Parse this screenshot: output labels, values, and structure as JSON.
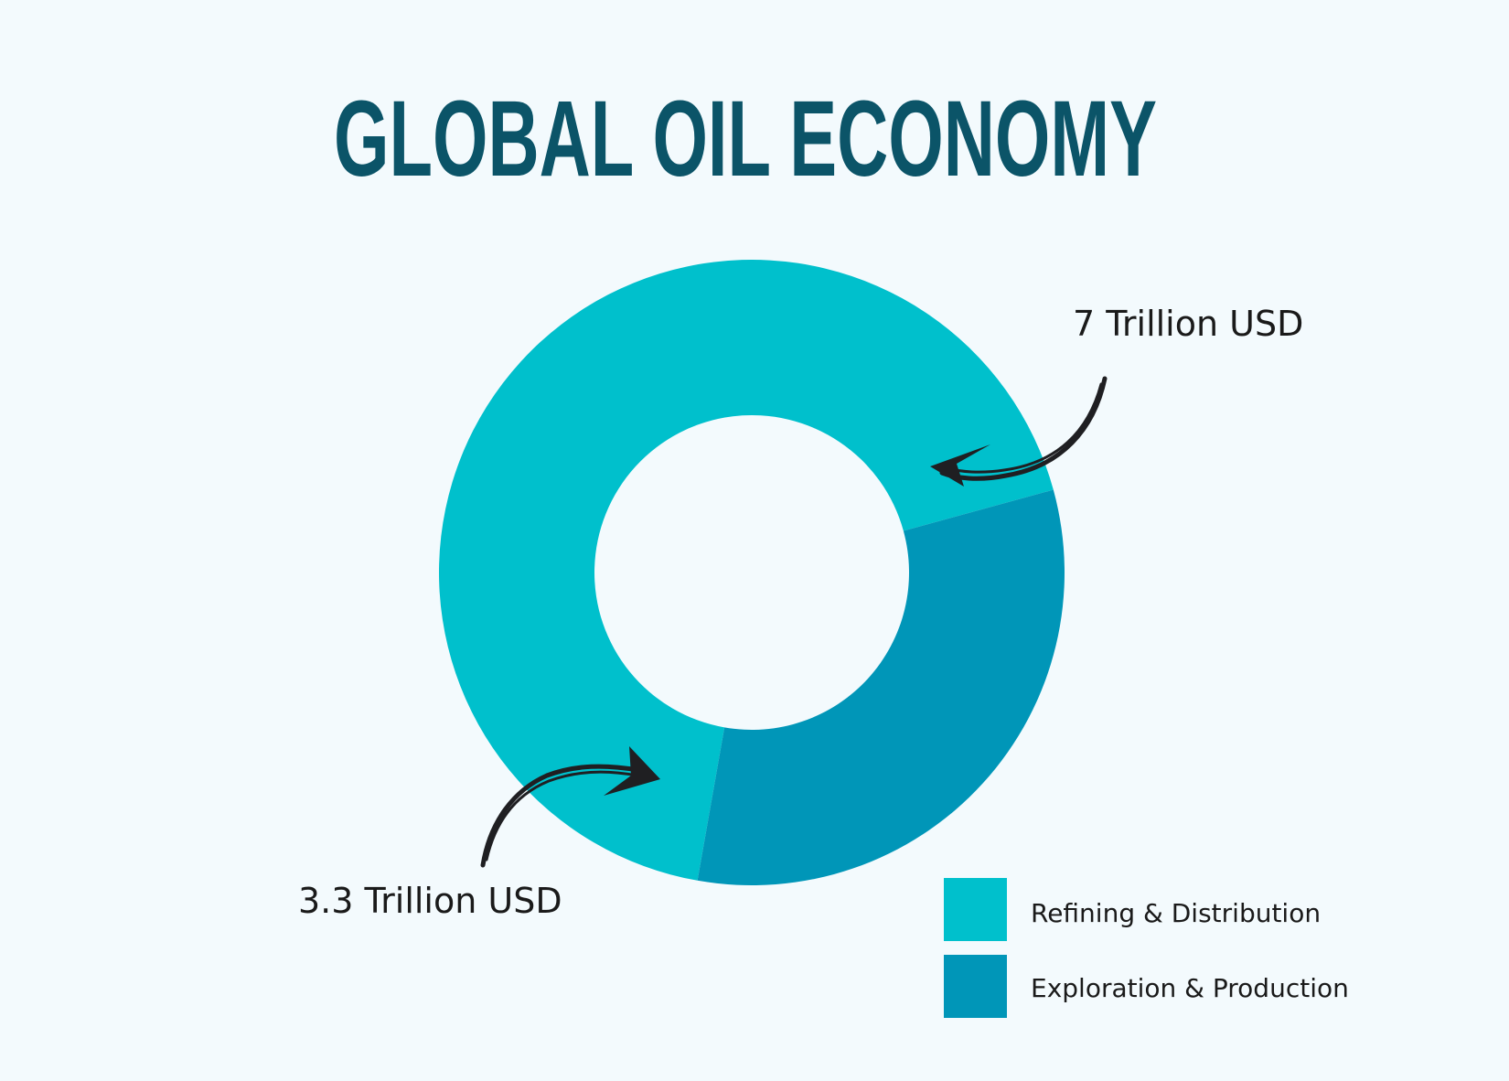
{
  "chart_data": {
    "type": "pie",
    "style": "donut",
    "title": "GLOBAL OIL ECONOMY",
    "categories": [
      "Refining & Distribution",
      "Exploration & Production"
    ],
    "values": [
      7,
      3.3
    ],
    "unit": "Trillion USD",
    "slice_labels": [
      "7 Trillion USD",
      "3.3 Trillion USD"
    ],
    "colors": [
      "#00c0cc",
      "#0096b8"
    ],
    "legend_position": "bottom-right",
    "legend": [
      {
        "label": "Refining & Distribution",
        "color": "#00c0cc"
      },
      {
        "label": "Exploration & Production",
        "color": "#0096b8"
      }
    ]
  },
  "colors": {
    "background": "#f3fafd",
    "title": "#0b5468",
    "text": "#1a1a1a",
    "arrow": "#1f1f22"
  }
}
